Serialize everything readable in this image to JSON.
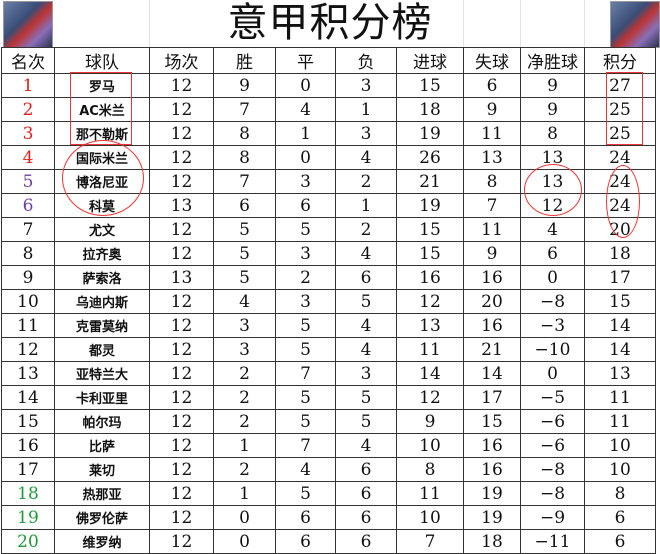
{
  "title": "意甲积分榜",
  "logo_alt": "player-logo",
  "colors": {
    "top": "#e0201b",
    "europa": "#6a3fa0",
    "relegation": "#1f9a3a",
    "annotation": "#e33333"
  },
  "headers": [
    "名次",
    "球队",
    "场次",
    "胜",
    "平",
    "负",
    "进球",
    "失球",
    "净胜球",
    "积分"
  ],
  "rows": [
    {
      "rank": "1",
      "team": "罗马",
      "p": "12",
      "w": "9",
      "d": "0",
      "l": "3",
      "gf": "15",
      "ga": "6",
      "gd": "9",
      "pts": "27",
      "zone": "top"
    },
    {
      "rank": "2",
      "team": "AC米兰",
      "p": "12",
      "w": "7",
      "d": "4",
      "l": "1",
      "gf": "18",
      "ga": "9",
      "gd": "9",
      "pts": "25",
      "zone": "top"
    },
    {
      "rank": "3",
      "team": "那不勒斯",
      "p": "12",
      "w": "8",
      "d": "1",
      "l": "3",
      "gf": "19",
      "ga": "11",
      "gd": "8",
      "pts": "25",
      "zone": "top"
    },
    {
      "rank": "4",
      "team": "国际米兰",
      "p": "12",
      "w": "8",
      "d": "0",
      "l": "4",
      "gf": "26",
      "ga": "13",
      "gd": "13",
      "pts": "24",
      "zone": "top"
    },
    {
      "rank": "5",
      "team": "博洛尼亚",
      "p": "12",
      "w": "7",
      "d": "3",
      "l": "2",
      "gf": "21",
      "ga": "8",
      "gd": "13",
      "pts": "24",
      "zone": "europa"
    },
    {
      "rank": "6",
      "team": "科莫",
      "p": "13",
      "w": "6",
      "d": "6",
      "l": "1",
      "gf": "19",
      "ga": "7",
      "gd": "12",
      "pts": "24",
      "zone": "europa"
    },
    {
      "rank": "7",
      "team": "尤文",
      "p": "12",
      "w": "5",
      "d": "5",
      "l": "2",
      "gf": "15",
      "ga": "11",
      "gd": "4",
      "pts": "20",
      "zone": ""
    },
    {
      "rank": "8",
      "team": "拉齐奥",
      "p": "12",
      "w": "5",
      "d": "3",
      "l": "4",
      "gf": "15",
      "ga": "9",
      "gd": "6",
      "pts": "18",
      "zone": ""
    },
    {
      "rank": "9",
      "team": "萨索洛",
      "p": "13",
      "w": "5",
      "d": "2",
      "l": "6",
      "gf": "16",
      "ga": "16",
      "gd": "0",
      "pts": "17",
      "zone": ""
    },
    {
      "rank": "10",
      "team": "乌迪内斯",
      "p": "12",
      "w": "4",
      "d": "3",
      "l": "5",
      "gf": "12",
      "ga": "20",
      "gd": "−8",
      "pts": "15",
      "zone": ""
    },
    {
      "rank": "11",
      "team": "克雷莫纳",
      "p": "12",
      "w": "3",
      "d": "5",
      "l": "4",
      "gf": "13",
      "ga": "16",
      "gd": "−3",
      "pts": "14",
      "zone": ""
    },
    {
      "rank": "12",
      "team": "都灵",
      "p": "12",
      "w": "3",
      "d": "5",
      "l": "4",
      "gf": "11",
      "ga": "21",
      "gd": "−10",
      "pts": "14",
      "zone": ""
    },
    {
      "rank": "13",
      "team": "亚特兰大",
      "p": "12",
      "w": "2",
      "d": "7",
      "l": "3",
      "gf": "14",
      "ga": "14",
      "gd": "0",
      "pts": "13",
      "zone": ""
    },
    {
      "rank": "14",
      "team": "卡利亚里",
      "p": "12",
      "w": "2",
      "d": "5",
      "l": "5",
      "gf": "12",
      "ga": "17",
      "gd": "−5",
      "pts": "11",
      "zone": ""
    },
    {
      "rank": "15",
      "team": "帕尔玛",
      "p": "12",
      "w": "2",
      "d": "5",
      "l": "5",
      "gf": "9",
      "ga": "15",
      "gd": "−6",
      "pts": "11",
      "zone": ""
    },
    {
      "rank": "16",
      "team": "比萨",
      "p": "12",
      "w": "1",
      "d": "7",
      "l": "4",
      "gf": "10",
      "ga": "16",
      "gd": "−6",
      "pts": "10",
      "zone": ""
    },
    {
      "rank": "17",
      "team": "莱切",
      "p": "12",
      "w": "2",
      "d": "4",
      "l": "6",
      "gf": "8",
      "ga": "16",
      "gd": "−8",
      "pts": "10",
      "zone": ""
    },
    {
      "rank": "18",
      "team": "热那亚",
      "p": "12",
      "w": "1",
      "d": "5",
      "l": "6",
      "gf": "11",
      "ga": "19",
      "gd": "−8",
      "pts": "8",
      "zone": "relegation"
    },
    {
      "rank": "19",
      "team": "佛罗伦萨",
      "p": "12",
      "w": "0",
      "d": "6",
      "l": "6",
      "gf": "10",
      "ga": "19",
      "gd": "−9",
      "pts": "6",
      "zone": "relegation"
    },
    {
      "rank": "20",
      "team": "维罗纳",
      "p": "12",
      "w": "0",
      "d": "6",
      "l": "6",
      "gf": "7",
      "ga": "18",
      "gd": "−11",
      "pts": "6",
      "zone": "relegation"
    }
  ]
}
